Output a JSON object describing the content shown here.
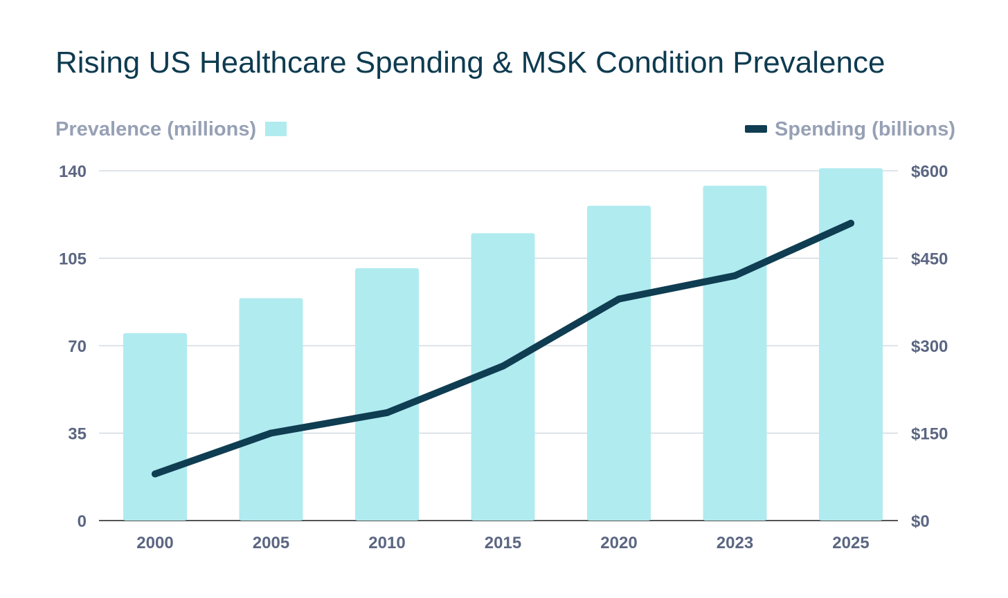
{
  "chart_data": {
    "type": "bar+line",
    "title": "Rising US Healthcare Spending & MSK Condition Prevalence",
    "categories": [
      "2000",
      "2005",
      "2010",
      "2015",
      "2020",
      "2023",
      "2025"
    ],
    "series": [
      {
        "name": "Prevalence (millions)",
        "type": "bar",
        "axis": "left",
        "values": [
          75,
          89,
          101,
          115,
          126,
          134,
          141
        ]
      },
      {
        "name": "Spending (billions)",
        "type": "line",
        "axis": "right",
        "values": [
          80,
          150,
          185,
          265,
          380,
          420,
          510
        ]
      }
    ],
    "left_axis": {
      "ylim": [
        0,
        140
      ],
      "ticks": [
        "0",
        "35",
        "70",
        "105",
        "140"
      ],
      "tick_values": [
        0,
        35,
        70,
        105,
        140
      ]
    },
    "right_axis": {
      "ylim": [
        0,
        600
      ],
      "ticks": [
        "$0",
        "$150",
        "$300",
        "$450",
        "$600"
      ],
      "tick_values": [
        0,
        150,
        300,
        450,
        600
      ]
    },
    "legend": {
      "left": "Prevalence (millions)",
      "right": "Spending (billions)",
      "placement": "top"
    },
    "grid": true,
    "colors": {
      "bar": "#b0ebef",
      "line": "#0f3d52",
      "title": "#0e3b50"
    }
  }
}
